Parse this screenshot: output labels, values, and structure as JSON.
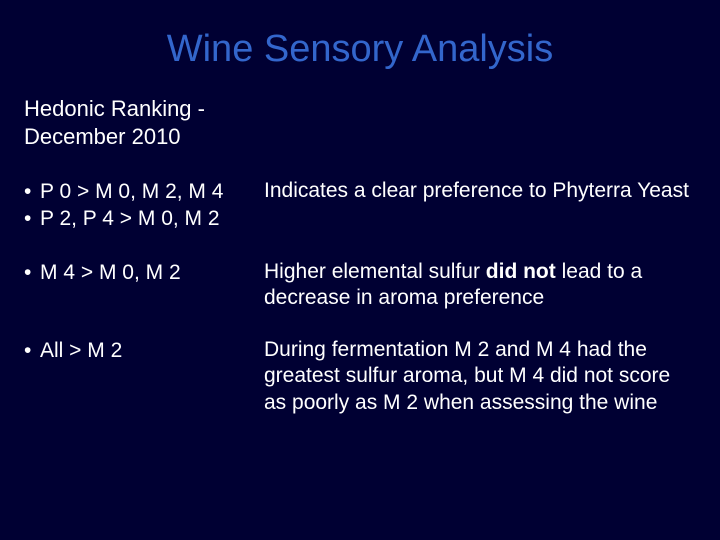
{
  "slide": {
    "title": "Wine Sensory Analysis",
    "subtitle_line1": "Hedonic Ranking -",
    "subtitle_line2": "December  2010",
    "rows": [
      {
        "left_lines": [
          "P 0 > M 0, M 2, M 4",
          "P 2, P 4 > M 0, M 2"
        ],
        "right_pre": "Indicates a clear preference to Phyterra Yeast",
        "right_bold": "",
        "right_post": ""
      },
      {
        "left_lines": [
          "M 4 > M 0, M 2"
        ],
        "right_pre": "Higher elemental sulfur ",
        "right_bold": "did not",
        "right_post": " lead to a decrease in aroma preference"
      },
      {
        "left_lines": [
          "All  >  M 2"
        ],
        "right_pre": "During fermentation M 2 and M 4 had the greatest sulfur aroma, but M 4 did not score as poorly as M 2 when assessing the wine",
        "right_bold": "",
        "right_post": ""
      }
    ],
    "colors": {
      "background": "#000033",
      "title": "#3366cc",
      "text": "#ffffff"
    }
  }
}
